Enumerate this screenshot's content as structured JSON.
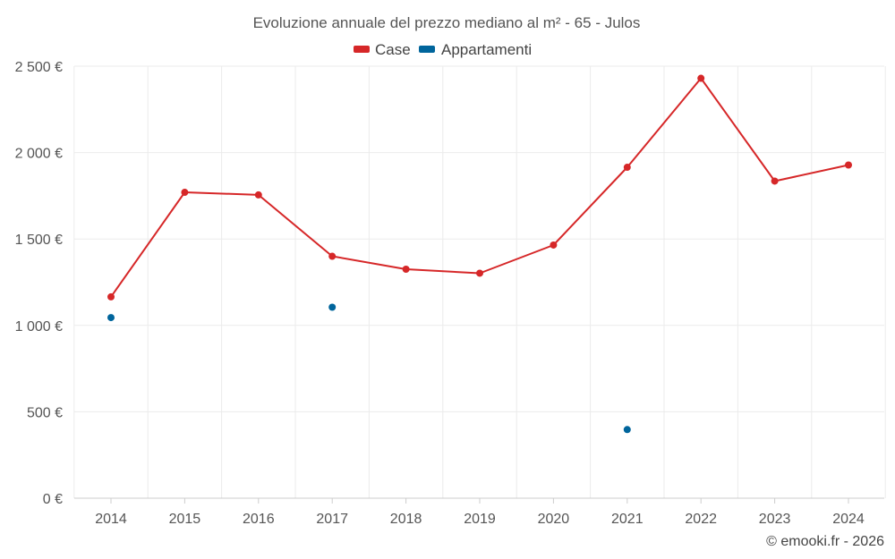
{
  "chart_data": {
    "type": "line",
    "title": "Evoluzione annuale del prezzo mediano al m² - 65 - Julos",
    "categories": [
      "2014",
      "2015",
      "2016",
      "2017",
      "2018",
      "2019",
      "2020",
      "2021",
      "2022",
      "2023",
      "2024"
    ],
    "series": [
      {
        "name": "Case",
        "color": "#d62728",
        "style": "line-with-markers",
        "values": [
          1165,
          1770,
          1755,
          1400,
          1325,
          1302,
          1465,
          1915,
          2430,
          1835,
          1928
        ]
      },
      {
        "name": "Appartamenti",
        "color": "#00659c",
        "style": "markers-only",
        "values": [
          1045,
          null,
          null,
          1105,
          null,
          null,
          null,
          397,
          null,
          null,
          null
        ]
      }
    ],
    "ylim": [
      0,
      2500
    ],
    "yticks": [
      0,
      500,
      1000,
      1500,
      2000,
      2500
    ],
    "ytick_labels": [
      "0 €",
      "500 €",
      "1 000 €",
      "1 500 €",
      "2 000 €",
      "2 500 €"
    ],
    "grid": true,
    "legend_position": "top-center",
    "xlabel": "",
    "ylabel": ""
  },
  "credit": "© emooki.fr - 2026"
}
